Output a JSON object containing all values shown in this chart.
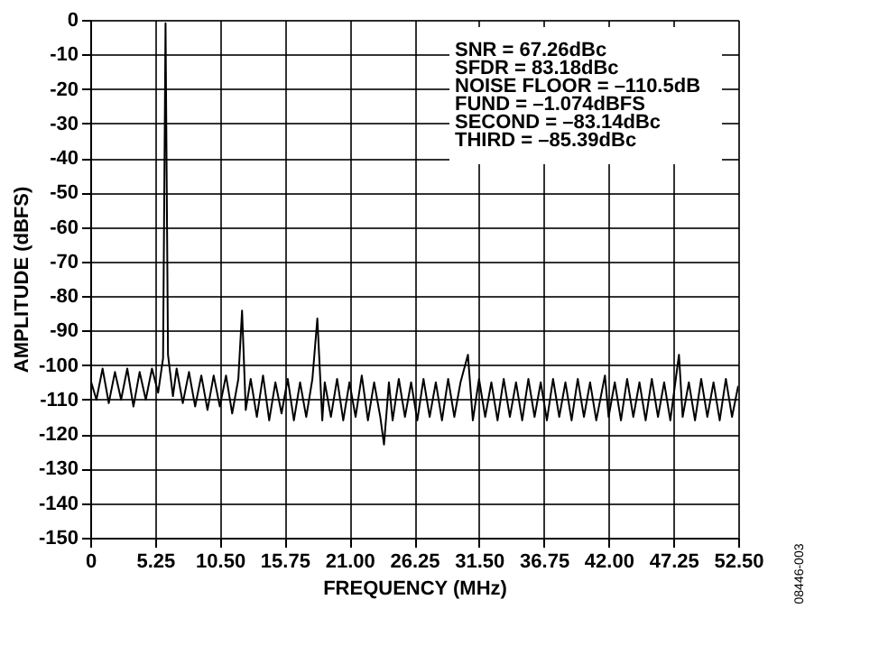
{
  "chart_data": {
    "type": "line",
    "xlabel": "FREQUENCY (MHz)",
    "ylabel": "AMPLITUDE (dBFS)",
    "xlim": [
      0,
      52.5
    ],
    "ylim": [
      -150,
      0
    ],
    "xticks": [
      0,
      5.25,
      {
        "value": 10.5,
        "label": "10.50"
      },
      15.75,
      {
        "value": 21,
        "label": "21.00"
      },
      26.25,
      {
        "value": 31.5,
        "label": "31.50"
      },
      36.75,
      {
        "value": 42,
        "label": "42.00"
      },
      47.25,
      {
        "value": 52.5,
        "label": "52.50"
      }
    ],
    "yticks": [
      0,
      -10,
      -20,
      -30,
      -40,
      -50,
      -60,
      -70,
      -80,
      -90,
      -100,
      -110,
      -120,
      -130,
      -140,
      -150
    ],
    "grid": true,
    "line_style": "solid",
    "marker": "none",
    "annotations": [
      "SNR = 67.26dBc\nSFDR = 83.18dBc\nNOISE FLOOR = –110.5dB\nFUND = –1.074dBFS\nSECOND = –83.14dBc\nTHIRD = –85.39dBc",
      "08446-003"
    ],
    "series": [
      {
        "color": "#000000",
        "x": [
          0,
          0.5,
          1,
          1.5,
          2,
          2.5,
          3,
          3.5,
          4,
          4.5,
          5,
          5.5,
          5.9,
          6.1,
          6.3,
          6.7,
          7,
          7.5,
          8,
          8.5,
          9,
          9.5,
          10,
          10.5,
          11,
          11.5,
          12,
          12.3,
          12.6,
          13,
          13.5,
          14,
          14.5,
          15,
          15.5,
          16,
          16.5,
          17,
          17.5,
          18,
          18.4,
          18.8,
          19,
          19.5,
          20,
          20.5,
          21,
          21.5,
          22,
          22.5,
          23,
          23.5,
          23.8,
          24.2,
          24.5,
          25,
          25.5,
          26,
          26.5,
          27,
          27.5,
          28,
          28.5,
          29,
          29.5,
          30,
          30.6,
          31,
          31.5,
          32,
          32.5,
          33,
          33.5,
          34,
          34.5,
          35,
          35.5,
          36,
          36.5,
          37,
          37.5,
          38,
          38.5,
          39,
          39.5,
          40,
          40.5,
          41,
          41.7,
          42,
          42.5,
          43,
          43.5,
          44,
          44.5,
          45,
          45.5,
          46,
          46.5,
          47,
          47.7,
          48,
          48.5,
          49,
          49.5,
          50,
          50.5,
          51,
          51.5,
          52,
          52.5
        ],
        "values": [
          -104,
          -110,
          -101,
          -111,
          -102,
          -110,
          -101,
          -112,
          -102,
          -110,
          -101,
          -108,
          -98,
          -1,
          -97,
          -109,
          -101,
          -111,
          -102,
          -112,
          -103,
          -113,
          -103,
          -112,
          -103,
          -114,
          -104,
          -84.2,
          -113,
          -104,
          -115,
          -103,
          -116,
          -105,
          -114,
          -104,
          -116,
          -105,
          -115,
          -104,
          -86.5,
          -116,
          -105,
          -115,
          -104,
          -116,
          -105,
          -115,
          -103,
          -116,
          -105,
          -115,
          -123,
          -105,
          -116,
          -104,
          -115,
          -105,
          -116,
          -104,
          -115,
          -105,
          -116,
          -104,
          -115,
          -105,
          -97,
          -116,
          -104,
          -115,
          -105,
          -116,
          -104,
          -115,
          -105,
          -116,
          -104,
          -115,
          -105,
          -116,
          -104,
          -115,
          -105,
          -116,
          -104,
          -115,
          -105,
          -116,
          -103,
          -115,
          -105,
          -116,
          -104,
          -115,
          -105,
          -116,
          -104,
          -115,
          -105,
          -116,
          -97,
          -115,
          -105,
          -116,
          -104,
          -115,
          -105,
          -116,
          -104,
          -115,
          -106
        ]
      }
    ]
  }
}
